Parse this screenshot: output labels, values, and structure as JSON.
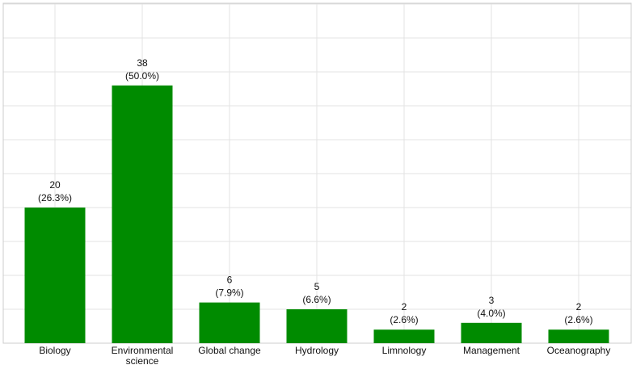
{
  "chart_data": {
    "type": "bar",
    "categories": [
      "Biology",
      "Environmental\nscience",
      "Global change",
      "Hydrology",
      "Limnology",
      "Management",
      "Oceanography"
    ],
    "values": [
      20,
      38,
      6,
      5,
      2,
      3,
      2
    ],
    "percent_labels": [
      "(26.3%)",
      "(50.0%)",
      "(7.9%)",
      "(6.6%)",
      "(2.6%)",
      "(4.0%)",
      "(2.6%)"
    ],
    "color": "#008b00",
    "ylim": [
      0,
      50
    ],
    "yticks": [
      0,
      5,
      10,
      15,
      20,
      25,
      30,
      35,
      40,
      45,
      50
    ],
    "grid": true
  }
}
